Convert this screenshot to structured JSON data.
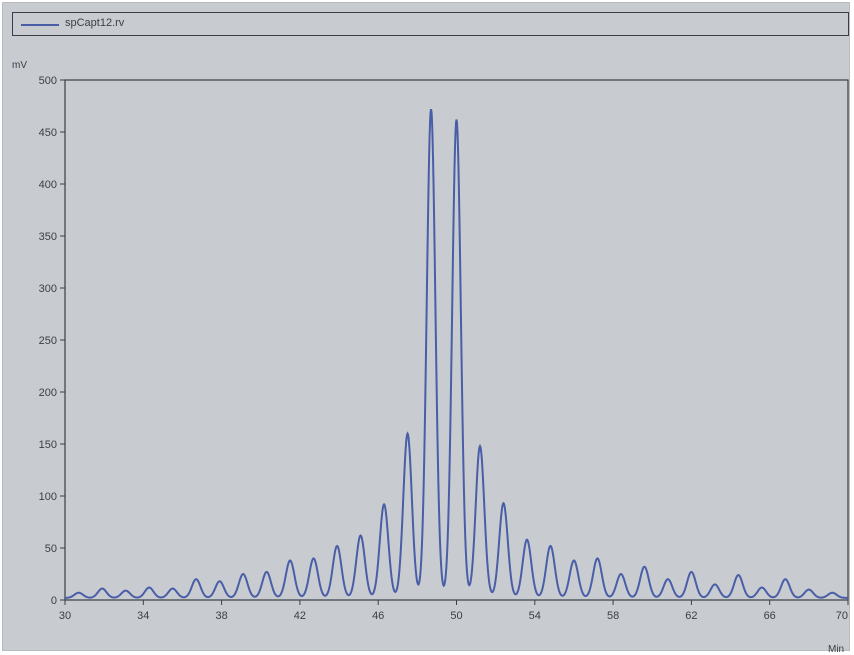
{
  "legend": {
    "label": "spCapt12.rv"
  },
  "chart_data": {
    "type": "line",
    "title": "",
    "ylabel": "mV",
    "xlabel": "",
    "x_unit": "Min",
    "xlim": [
      30,
      70
    ],
    "ylim": [
      0,
      500
    ],
    "x_ticks": [
      30,
      34,
      38,
      42,
      46,
      50,
      54,
      58,
      62,
      66,
      70
    ],
    "y_ticks": [
      0,
      50,
      100,
      150,
      200,
      250,
      300,
      350,
      400,
      450,
      500
    ],
    "grid": false,
    "legend_position": "top",
    "series": [
      {
        "name": "spCapt12.rv",
        "color": "#4a5ea8",
        "peaks": [
          {
            "x": 30.7,
            "y": 7
          },
          {
            "x": 31.9,
            "y": 11
          },
          {
            "x": 33.1,
            "y": 9
          },
          {
            "x": 34.3,
            "y": 12
          },
          {
            "x": 35.5,
            "y": 11
          },
          {
            "x": 36.7,
            "y": 20
          },
          {
            "x": 37.9,
            "y": 18
          },
          {
            "x": 39.1,
            "y": 25
          },
          {
            "x": 40.3,
            "y": 27
          },
          {
            "x": 41.5,
            "y": 38
          },
          {
            "x": 42.7,
            "y": 40
          },
          {
            "x": 43.9,
            "y": 52
          },
          {
            "x": 45.1,
            "y": 62
          },
          {
            "x": 46.3,
            "y": 92
          },
          {
            "x": 47.5,
            "y": 160
          },
          {
            "x": 48.7,
            "y": 472
          },
          {
            "x": 50.0,
            "y": 462
          },
          {
            "x": 51.2,
            "y": 148
          },
          {
            "x": 52.4,
            "y": 93
          },
          {
            "x": 53.6,
            "y": 58
          },
          {
            "x": 54.8,
            "y": 52
          },
          {
            "x": 56.0,
            "y": 38
          },
          {
            "x": 57.2,
            "y": 40
          },
          {
            "x": 58.4,
            "y": 25
          },
          {
            "x": 59.6,
            "y": 32
          },
          {
            "x": 60.8,
            "y": 20
          },
          {
            "x": 62.0,
            "y": 27
          },
          {
            "x": 63.2,
            "y": 15
          },
          {
            "x": 64.4,
            "y": 24
          },
          {
            "x": 65.6,
            "y": 12
          },
          {
            "x": 66.8,
            "y": 20
          },
          {
            "x": 68.0,
            "y": 10
          },
          {
            "x": 69.2,
            "y": 7
          }
        ],
        "baseline": 2
      }
    ]
  }
}
